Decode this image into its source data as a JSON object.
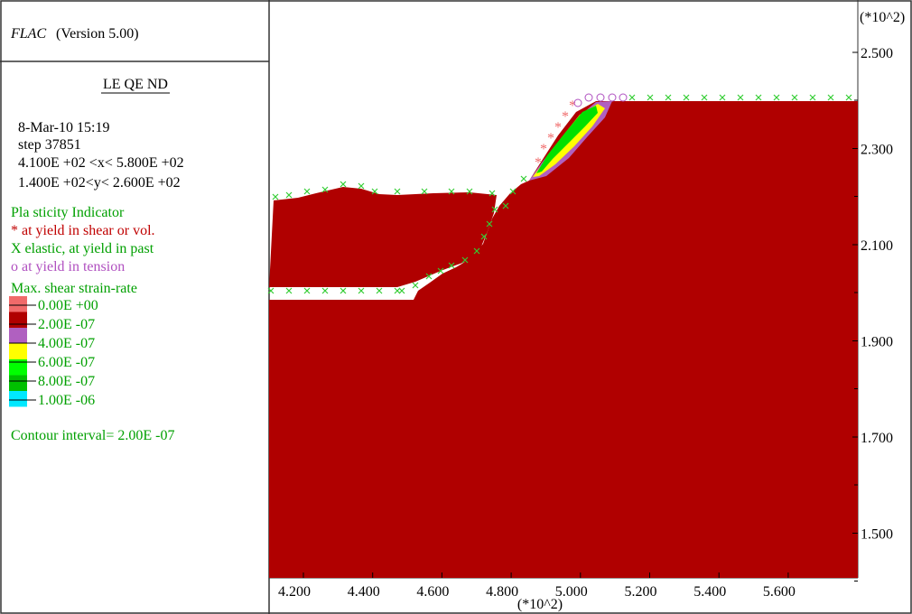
{
  "header": {
    "program": "FLAC",
    "version": "(Version 5.00)"
  },
  "legend": {
    "heading": "LE QE ND",
    "date": "8-Mar-10   15:19",
    "step": "step     37851",
    "x_range": "4.100E +02 <x<  5.800E +02",
    "y_range": "1.400E +02<y<  2.600E +02",
    "plasticity": {
      "title": "Pla sticity Indicator",
      "items": [
        "* at yield in shear or vol.",
        "X elastic, at yield in past",
        "o at yield in tension"
      ]
    },
    "strain": {
      "title": "Max. shear strain-rate",
      "levels": [
        "0.00E +00",
        "2.00E -07",
        "4.00E -07",
        "6.00E -07",
        "8.00E -07",
        "1.00E -06"
      ]
    },
    "contour": "Contour interval= 2.00E -07"
  },
  "axes": {
    "y_multiplier": "(*10^2)",
    "x_multiplier": "(*10^2)",
    "y_labels": [
      "2.500",
      "2.300",
      "2.100",
      "1.900",
      "1.700",
      "1.500"
    ],
    "x_labels": [
      "4.200",
      "4.400",
      "4.600",
      "4.800",
      "5.000",
      "5.200",
      "5.400",
      "5.600"
    ]
  }
}
